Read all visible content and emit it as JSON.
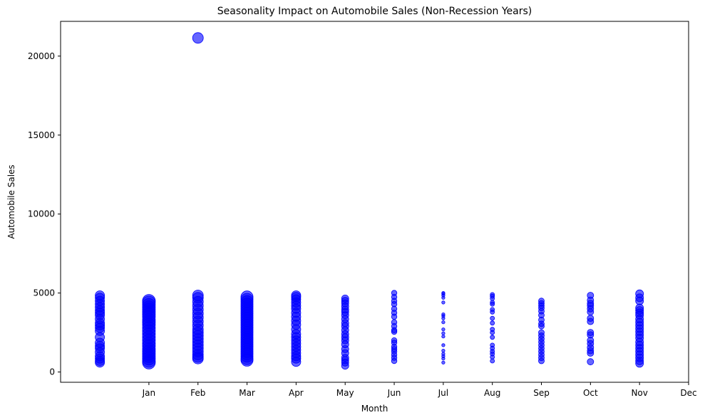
{
  "chart_data": {
    "type": "scatter",
    "title": "Seasonality Impact on Automobile Sales (Non-Recession Years)",
    "xlabel": "Month",
    "ylabel": "Automobile Sales",
    "x_ticks": [
      {
        "pos": 2,
        "label": "Jan"
      },
      {
        "pos": 3,
        "label": "Feb"
      },
      {
        "pos": 4,
        "label": "Mar"
      },
      {
        "pos": 5,
        "label": "Apr"
      },
      {
        "pos": 6,
        "label": "May"
      },
      {
        "pos": 7,
        "label": "Jun"
      },
      {
        "pos": 8,
        "label": "Jul"
      },
      {
        "pos": 9,
        "label": "Aug"
      },
      {
        "pos": 10,
        "label": "Sep"
      },
      {
        "pos": 11,
        "label": "Oct"
      },
      {
        "pos": 12,
        "label": "Nov"
      },
      {
        "pos": 13,
        "label": "Dec"
      }
    ],
    "y_ticks": [
      0,
      5000,
      10000,
      15000,
      20000
    ],
    "xlim": [
      0.2,
      13.0
    ],
    "ylim": [
      -650,
      22200
    ],
    "grid": false,
    "color": "#0000ff",
    "opacity": 0.6,
    "groups": [
      {
        "month": 1,
        "size": 6.5,
        "values": [
          4850,
          4700,
          4500,
          4300,
          4100,
          3900,
          3750,
          3600,
          3350,
          3100,
          2950,
          2800,
          2600,
          2200,
          1850,
          1650,
          1500,
          1250,
          1000,
          850,
          700,
          600
        ]
      },
      {
        "month": 2,
        "size": 9,
        "values": [
          4500,
          4400,
          4250,
          4100,
          3950,
          3800,
          3650,
          3500,
          3300,
          3150,
          3000,
          2800,
          2600,
          2400,
          2200,
          2000,
          1800,
          1650,
          1450,
          1300,
          1150,
          1000,
          850,
          700,
          600
        ]
      },
      {
        "month": 3,
        "size": 7.5,
        "values": [
          21150,
          4850,
          4700,
          4450,
          4200,
          3950,
          3700,
          3450,
          3200,
          2950,
          2700,
          2500,
          2300,
          2100,
          1900,
          1700,
          1500,
          1300,
          1100,
          950,
          850
        ]
      },
      {
        "month": 4,
        "size": 8.5,
        "values": [
          4750,
          4600,
          4450,
          4300,
          4150,
          4000,
          3850,
          3700,
          3550,
          3400,
          3250,
          3100,
          2950,
          2800,
          2650,
          2500,
          2350,
          2200,
          2050,
          1900,
          1750,
          1600,
          1450,
          1300,
          1150,
          1000,
          850,
          750
        ]
      },
      {
        "month": 5,
        "size": 6.5,
        "values": [
          4850,
          4750,
          4600,
          4400,
          4200,
          4000,
          3750,
          3500,
          3250,
          3000,
          2700,
          2400,
          2200,
          2000,
          1800,
          1600,
          1400,
          1200,
          1000,
          850,
          650
        ]
      },
      {
        "month": 6,
        "size": 5,
        "values": [
          4650,
          4500,
          4350,
          4150,
          3950,
          3800,
          3600,
          3350,
          3100,
          2900,
          2650,
          2400,
          2200,
          2000,
          1750,
          1450,
          1200,
          900,
          750,
          600,
          400
        ]
      },
      {
        "month": 7,
        "size": 3.8,
        "values": [
          5000,
          4750,
          4500,
          4300,
          4000,
          3750,
          3500,
          3150,
          2900,
          2650,
          2550,
          2000,
          1850,
          1600,
          1450,
          1300,
          1100,
          900,
          700
        ]
      },
      {
        "month": 8,
        "size": 2.2,
        "values": [
          5000,
          4950,
          4850,
          4700,
          4400,
          3650,
          3550,
          3400,
          3150,
          2700,
          2450,
          2250,
          1700,
          1350,
          1150,
          1000,
          850,
          600
        ]
      },
      {
        "month": 9,
        "size": 3,
        "values": [
          4900,
          4800,
          4650,
          4400,
          4300,
          3950,
          3800,
          3400,
          3100,
          2700,
          2500,
          2200,
          1700,
          1500,
          1300,
          1150,
          950,
          700
        ]
      },
      {
        "month": 10,
        "size": 4,
        "values": [
          4500,
          4350,
          4200,
          4050,
          3850,
          3600,
          3300,
          3050,
          2900,
          2500,
          2300,
          2100,
          1900,
          1700,
          1500,
          1300,
          1100,
          900,
          700
        ]
      },
      {
        "month": 11,
        "size": 4.5,
        "values": [
          4850,
          4550,
          4350,
          4200,
          4000,
          3800,
          3400,
          3200,
          2500,
          2350,
          2000,
          1800,
          1550,
          1350,
          1200,
          650
        ]
      },
      {
        "month": 12,
        "size": 5.5,
        "values": [
          4950,
          4700,
          4500,
          4050,
          3900,
          3750,
          3600,
          3350,
          3150,
          2950,
          2750,
          2550,
          2350,
          2150,
          1900,
          1700,
          1500,
          1300,
          1100,
          900,
          700,
          550
        ]
      }
    ]
  }
}
